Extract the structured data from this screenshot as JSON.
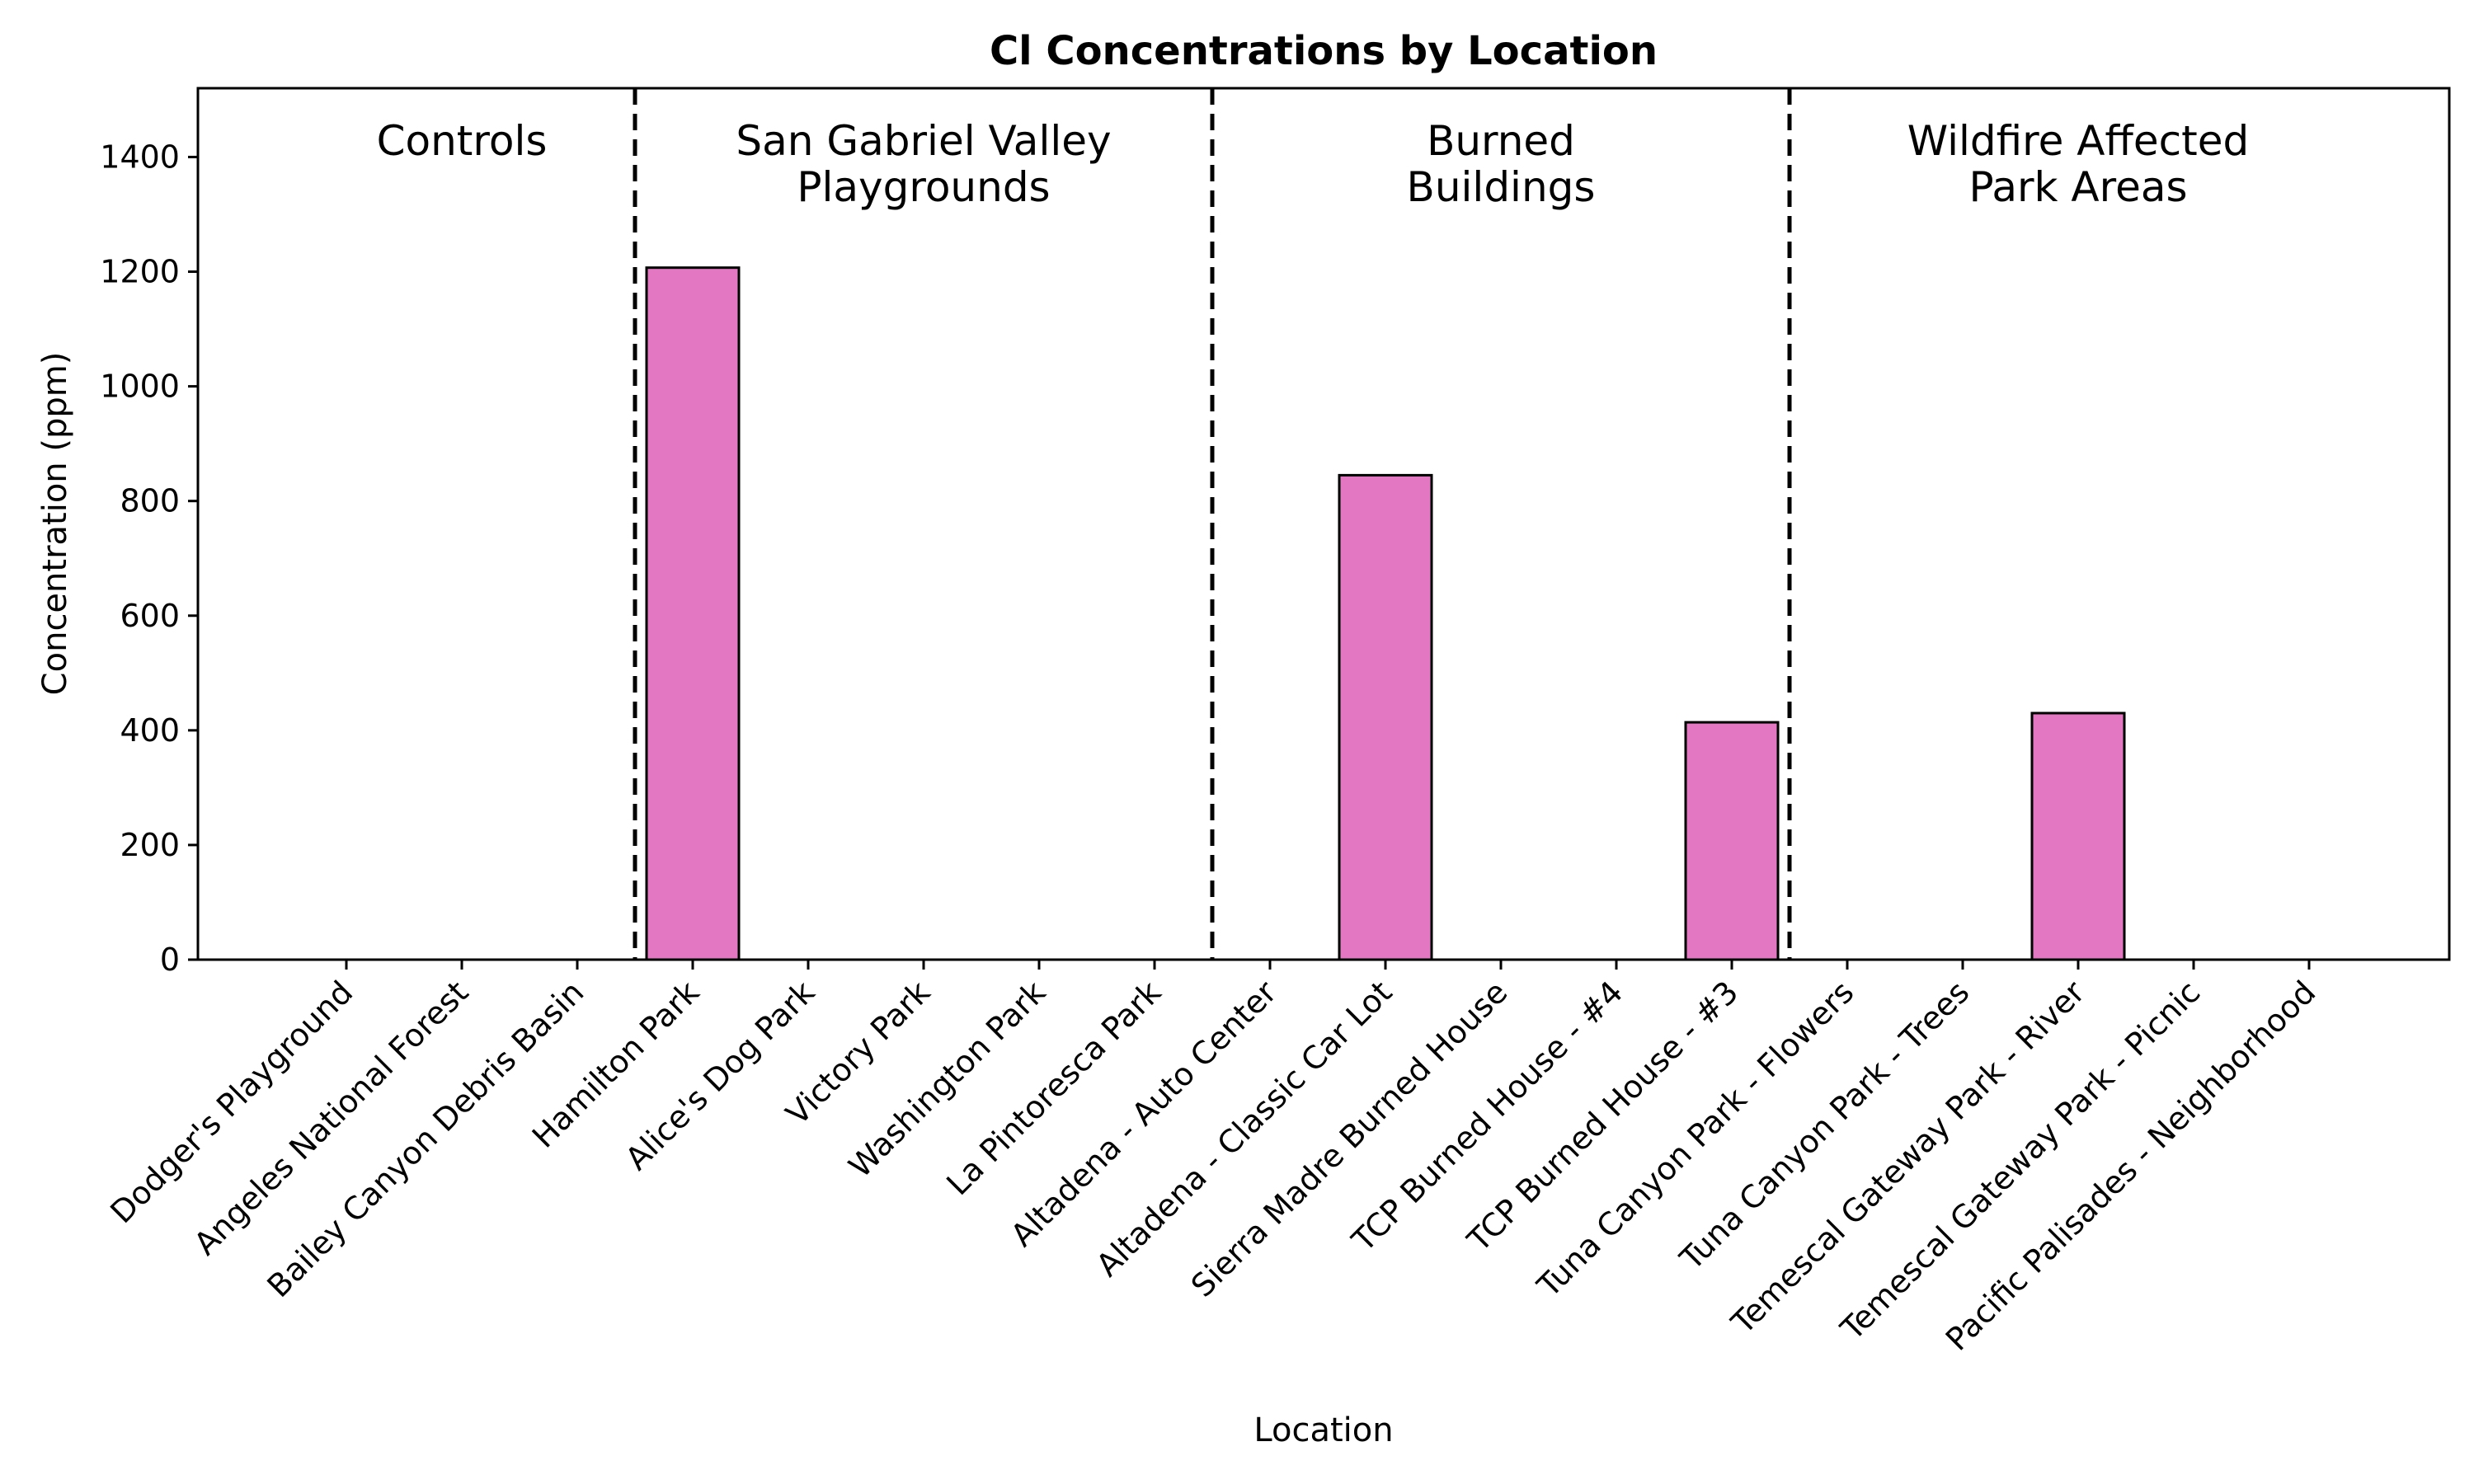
{
  "chart_data": {
    "type": "bar",
    "title": "Cl Concentrations by Location",
    "xlabel": "Location",
    "ylabel": "Concentration (ppm)",
    "ylim": [
      0,
      1520
    ],
    "yticks": [
      0,
      200,
      400,
      600,
      800,
      1000,
      1200,
      1400
    ],
    "grid": false,
    "bar_color": "#e377c2",
    "bar_edge_color": "#000000",
    "categories": [
      "Dodger's Playground",
      "Angeles National Forest",
      "Bailey Canyon Debris Basin",
      "Hamilton Park",
      "Alice's Dog Park",
      "Victory Park",
      "Washington Park",
      "La Pintoresca Park",
      "Altadena - Auto Center",
      "Altadena - Classic Car Lot",
      "Sierra Madre Burned House",
      "TCP Burned House - #4",
      "TCP Burned House - #3",
      "Tuna Canyon Park - Flowers",
      "Tuna Canyon Park - Trees",
      "Temescal Gateway Park - River",
      "Temescal Gateway Park - Picnic",
      "Pacific Palisades - Neighborhood"
    ],
    "values": [
      0,
      0,
      0,
      1207,
      0,
      0,
      0,
      0,
      0,
      845,
      0,
      0,
      414,
      0,
      0,
      430,
      0,
      0
    ],
    "groups": [
      {
        "label_lines": [
          "Controls"
        ],
        "start_index": 0,
        "end_index": 2
      },
      {
        "label_lines": [
          "San Gabriel Valley",
          "Playgrounds"
        ],
        "start_index": 3,
        "end_index": 7
      },
      {
        "label_lines": [
          "Burned",
          "Buildings"
        ],
        "start_index": 8,
        "end_index": 12
      },
      {
        "label_lines": [
          "Wildfire Affected",
          "Park Areas"
        ],
        "start_index": 13,
        "end_index": 17
      }
    ]
  }
}
